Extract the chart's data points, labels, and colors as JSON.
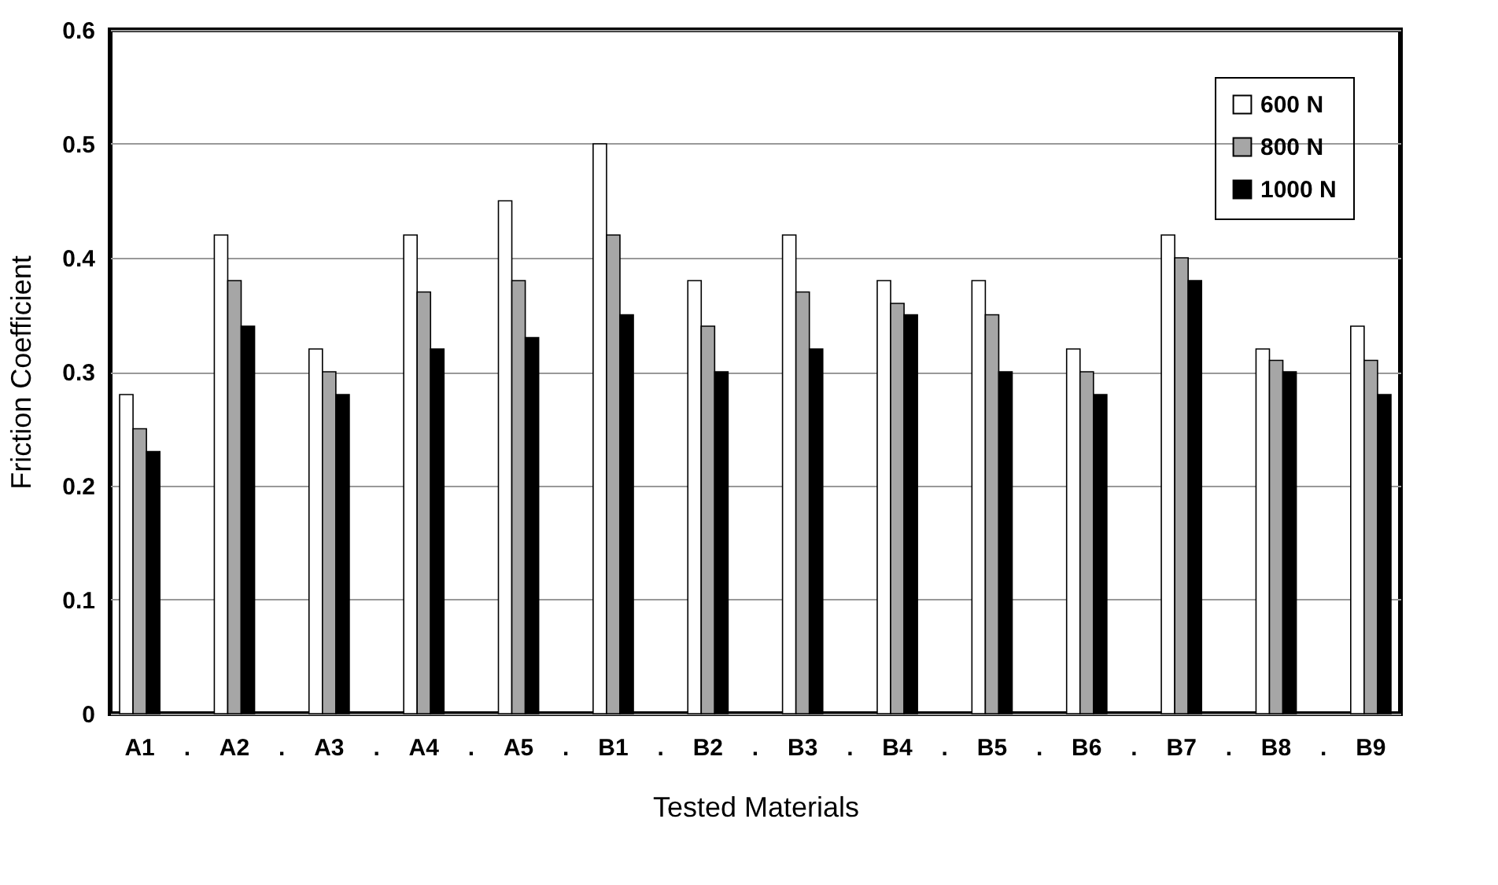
{
  "chart_data": {
    "type": "bar",
    "xlabel": "Tested Materials",
    "ylabel": "Friction Coefficient",
    "categories": [
      "A1",
      ".",
      "A2",
      ".",
      "A3",
      ".",
      "A4",
      ".",
      "A5",
      ".",
      "B1",
      ".",
      "B2",
      ".",
      "B3",
      ".",
      "B4",
      ".",
      "B5",
      ".",
      "B6",
      ".",
      "B7",
      ".",
      "B8",
      ".",
      "B9"
    ],
    "series": [
      {
        "name": "600 N",
        "color": "#ffffff",
        "values": [
          0.28,
          null,
          0.42,
          null,
          0.32,
          null,
          0.42,
          null,
          0.45,
          null,
          0.5,
          null,
          0.38,
          null,
          0.42,
          null,
          0.38,
          null,
          0.38,
          null,
          0.32,
          null,
          0.42,
          null,
          0.32,
          null,
          0.34
        ]
      },
      {
        "name": "800 N",
        "color": "#a6a6a6",
        "values": [
          0.25,
          null,
          0.38,
          null,
          0.3,
          null,
          0.37,
          null,
          0.38,
          null,
          0.42,
          null,
          0.34,
          null,
          0.37,
          null,
          0.36,
          null,
          0.35,
          null,
          0.3,
          null,
          0.4,
          null,
          0.31,
          null,
          0.31
        ]
      },
      {
        "name": "1000 N",
        "color": "#000000",
        "values": [
          0.23,
          null,
          0.34,
          null,
          0.28,
          null,
          0.32,
          null,
          0.33,
          null,
          0.35,
          null,
          0.3,
          null,
          0.32,
          null,
          0.35,
          null,
          0.3,
          null,
          0.28,
          null,
          0.38,
          null,
          0.3,
          null,
          0.28
        ]
      }
    ],
    "ylim": [
      0,
      0.6
    ],
    "yticks": [
      {
        "value": 0,
        "label": "0"
      },
      0.1,
      0.2,
      0.3,
      0.4,
      0.5,
      0.6
    ],
    "grid": "y",
    "legend": "top right"
  }
}
